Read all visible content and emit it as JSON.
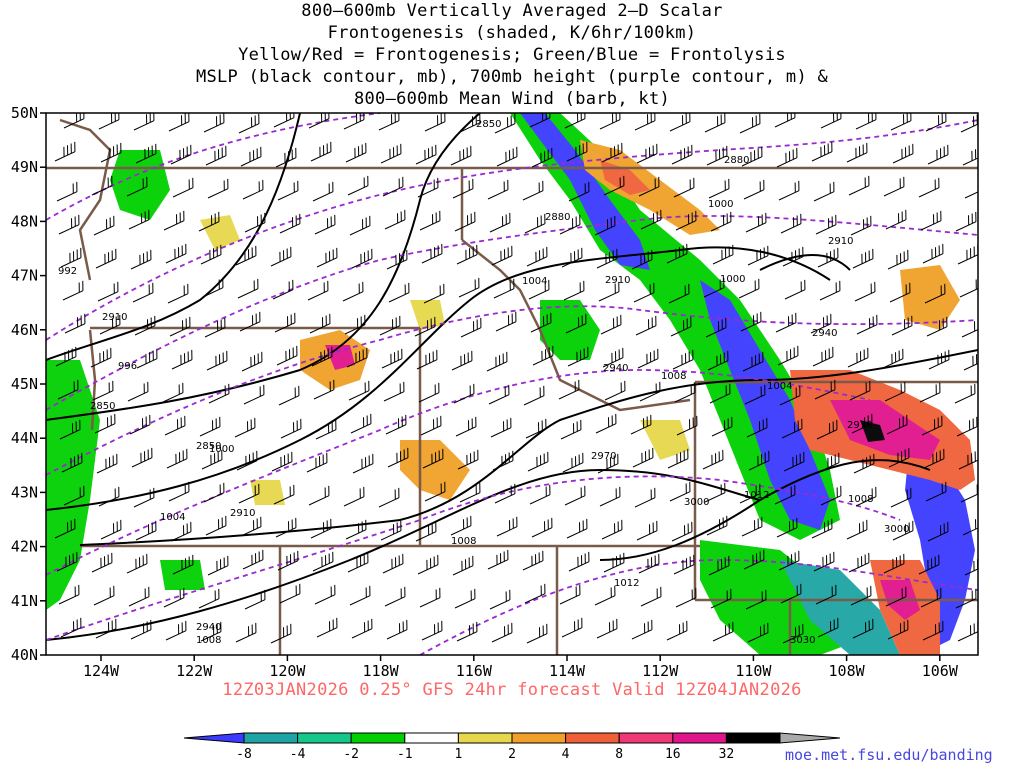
{
  "title_lines": [
    "800–600mb Vertically Averaged 2–D Scalar",
    "Frontogenesis (shaded, K/6hr/100km)",
    "Yellow/Red = Frontogenesis;  Green/Blue = Frontolysis",
    "MSLP (black contour, mb), 700mb height (purple contour, m) &",
    "800–600mb Mean Wind (barb, kt)"
  ],
  "lat_labels": [
    "50N",
    "49N",
    "48N",
    "47N",
    "46N",
    "45N",
    "44N",
    "43N",
    "42N",
    "41N",
    "40N"
  ],
  "lon_labels": [
    "124W",
    "122W",
    "120W",
    "118W",
    "116W",
    "114W",
    "112W",
    "110W",
    "108W",
    "106W"
  ],
  "footer": "12Z03JAN2026 0.25° GFS 24hr forecast Valid 12Z04JAN2026",
  "credit": "moe.met.fsu.edu/banding",
  "colorbar": {
    "labels": [
      "-8",
      "-4",
      "-2",
      "-1",
      "1",
      "2",
      "4",
      "8",
      "16",
      "32"
    ],
    "colors": [
      "#3b3bff",
      "#1ea4a4",
      "#14c88c",
      "#00d000",
      "#ffffff",
      "#e6d84a",
      "#f0a028",
      "#f06038",
      "#f03878",
      "#e0148c",
      "#000000",
      "#aaaaaa"
    ]
  },
  "mslp_labels": [
    "992",
    "996",
    "1000",
    "1000",
    "1000",
    "1004",
    "1004",
    "1004",
    "1008",
    "1008",
    "1008",
    "1008",
    "1012",
    "1012"
  ],
  "height_labels": [
    "2850",
    "2850",
    "2850",
    "2880",
    "2880",
    "2910",
    "2910",
    "2910",
    "2910",
    "2940",
    "2940",
    "2940",
    "2970",
    "2970",
    "3000",
    "3000",
    "3030"
  ]
}
